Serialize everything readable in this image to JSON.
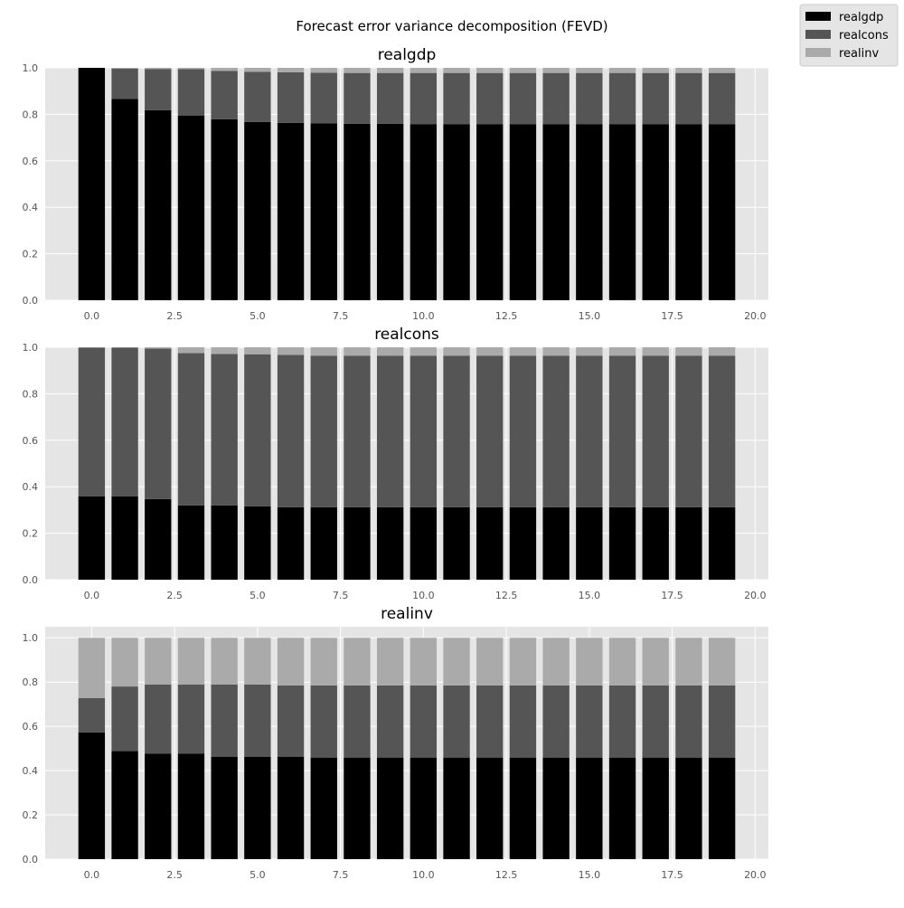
{
  "chart_data": {
    "type": "bar",
    "stacked": true,
    "title": "Forecast error variance decomposition (FEVD)",
    "legend": {
      "placement": "top-right",
      "entries": [
        "realgdp",
        "realcons",
        "realinv"
      ]
    },
    "colors": {
      "realgdp": "#000000",
      "realcons": "#555555",
      "realinv": "#aaaaaa",
      "axes_bg": "#e5e5e5",
      "grid": "#ffffff"
    },
    "grid": true,
    "x": [
      0,
      1,
      2,
      3,
      4,
      5,
      6,
      7,
      8,
      9,
      10,
      11,
      12,
      13,
      14,
      15,
      16,
      17,
      18,
      19
    ],
    "xlim": [
      -1.4,
      20.4
    ],
    "xticks": [
      "0.0",
      "2.5",
      "5.0",
      "7.5",
      "10.0",
      "12.5",
      "15.0",
      "17.5",
      "20.0"
    ],
    "yticks": [
      "0.0",
      "0.2",
      "0.4",
      "0.6",
      "0.8",
      "1.0"
    ],
    "panels": [
      {
        "title": "realgdp",
        "ylim": [
          0,
          1.0
        ],
        "series": [
          {
            "name": "realgdp",
            "values": [
              1.0,
              0.866,
              0.818,
              0.795,
              0.779,
              0.767,
              0.763,
              0.761,
              0.759,
              0.759,
              0.758,
              0.758,
              0.758,
              0.758,
              0.758,
              0.758,
              0.758,
              0.758,
              0.758,
              0.758
            ]
          },
          {
            "name": "realcons",
            "values": [
              0.0,
              0.13,
              0.177,
              0.199,
              0.208,
              0.216,
              0.218,
              0.218,
              0.219,
              0.219,
              0.22,
              0.22,
              0.22,
              0.22,
              0.22,
              0.22,
              0.22,
              0.22,
              0.22,
              0.22
            ]
          },
          {
            "name": "realinv",
            "values": [
              0.0,
              0.004,
              0.005,
              0.006,
              0.013,
              0.017,
              0.019,
              0.021,
              0.022,
              0.022,
              0.022,
              0.022,
              0.022,
              0.022,
              0.022,
              0.022,
              0.022,
              0.022,
              0.022,
              0.022
            ]
          }
        ]
      },
      {
        "title": "realcons",
        "ylim": [
          0,
          1.0
        ],
        "series": [
          {
            "name": "realgdp",
            "values": [
              0.359,
              0.359,
              0.347,
              0.32,
              0.32,
              0.316,
              0.312,
              0.312,
              0.312,
              0.312,
              0.312,
              0.312,
              0.312,
              0.312,
              0.312,
              0.312,
              0.312,
              0.312,
              0.312,
              0.312
            ]
          },
          {
            "name": "realcons",
            "values": [
              0.639,
              0.639,
              0.647,
              0.655,
              0.651,
              0.654,
              0.655,
              0.652,
              0.652,
              0.652,
              0.652,
              0.652,
              0.652,
              0.652,
              0.652,
              0.652,
              0.652,
              0.652,
              0.652,
              0.652
            ]
          },
          {
            "name": "realinv",
            "values": [
              0.002,
              0.002,
              0.006,
              0.025,
              0.029,
              0.03,
              0.033,
              0.036,
              0.036,
              0.036,
              0.036,
              0.036,
              0.036,
              0.036,
              0.036,
              0.036,
              0.036,
              0.036,
              0.036,
              0.036
            ]
          }
        ]
      },
      {
        "title": "realinv",
        "ylim": [
          0,
          1.05
        ],
        "series": [
          {
            "name": "realgdp",
            "values": [
              0.573,
              0.488,
              0.476,
              0.476,
              0.463,
              0.463,
              0.463,
              0.459,
              0.459,
              0.459,
              0.459,
              0.459,
              0.459,
              0.459,
              0.459,
              0.459,
              0.459,
              0.459,
              0.459,
              0.459
            ]
          },
          {
            "name": "realcons",
            "values": [
              0.155,
              0.292,
              0.313,
              0.313,
              0.326,
              0.326,
              0.322,
              0.326,
              0.326,
              0.326,
              0.326,
              0.326,
              0.326,
              0.326,
              0.326,
              0.326,
              0.326,
              0.326,
              0.326,
              0.326
            ]
          },
          {
            "name": "realinv",
            "values": [
              0.272,
              0.22,
              0.211,
              0.211,
              0.211,
              0.211,
              0.215,
              0.215,
              0.215,
              0.215,
              0.215,
              0.215,
              0.215,
              0.215,
              0.215,
              0.215,
              0.215,
              0.215,
              0.215,
              0.215
            ]
          }
        ]
      }
    ]
  }
}
